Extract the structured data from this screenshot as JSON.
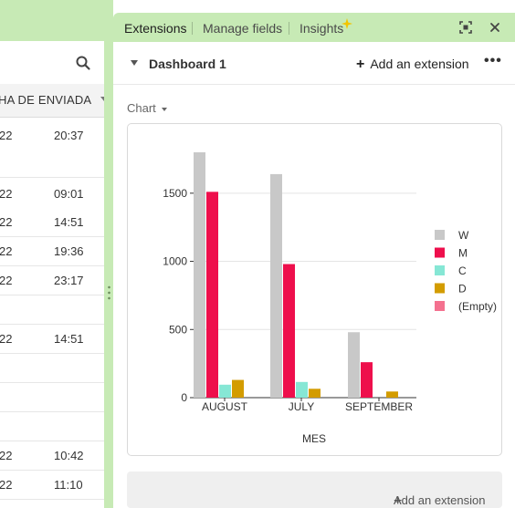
{
  "grid": {
    "column_header": "HA DE ENVIADA",
    "rows": [
      {
        "date": "22",
        "time": "20:37"
      },
      {
        "date": "",
        "time": ""
      },
      {
        "date": "22",
        "time": "09:01"
      },
      {
        "date": "22",
        "time": "14:51"
      },
      {
        "date": "22",
        "time": "19:36"
      },
      {
        "date": "22",
        "time": "23:17"
      },
      {
        "date": "",
        "time": ""
      },
      {
        "date": "22",
        "time": "14:51"
      },
      {
        "date": "",
        "time": ""
      },
      {
        "date": "",
        "time": ""
      },
      {
        "date": "",
        "time": ""
      },
      {
        "date": "22",
        "time": "10:42"
      },
      {
        "date": "22",
        "time": "11:10"
      }
    ]
  },
  "tabs": {
    "extensions": "Extensions",
    "manage_fields": "Manage fields",
    "insights": "Insights"
  },
  "dashboard": {
    "title": "Dashboard 1",
    "add_extension": "Add an extension"
  },
  "chart_selector": "Chart",
  "bottom_button": "Add an extension",
  "colors": {
    "W": "#c8c8c8",
    "M": "#ee0f4c",
    "C": "#86e7d5",
    "D": "#d39c00",
    "Empty": "#f4718f"
  },
  "chart_data": {
    "type": "bar",
    "title": "",
    "xlabel": "MES",
    "ylabel": "",
    "categories": [
      "AUGUST",
      "JULY",
      "SEPTEMBER"
    ],
    "yticks": [
      0,
      500,
      1000,
      1500
    ],
    "ylim": [
      0,
      1800
    ],
    "legend_position": "right",
    "series": [
      {
        "name": "W",
        "values": [
          1800,
          1640,
          480
        ]
      },
      {
        "name": "M",
        "values": [
          1510,
          980,
          260
        ]
      },
      {
        "name": "C",
        "values": [
          95,
          115,
          0
        ]
      },
      {
        "name": "D",
        "values": [
          130,
          65,
          45
        ]
      },
      {
        "name": "(Empty)",
        "values": [
          0,
          0,
          0
        ]
      }
    ]
  }
}
